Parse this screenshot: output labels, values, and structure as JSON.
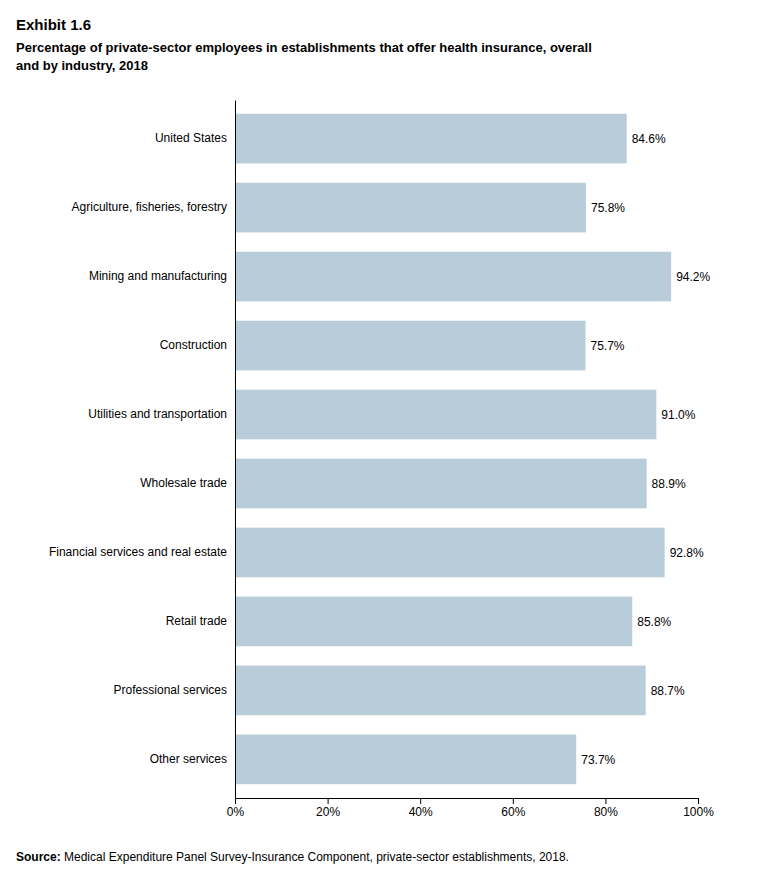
{
  "chart_data": {
    "type": "bar",
    "orientation": "horizontal",
    "title": "Exhibit 1.6",
    "subtitle": [
      "Percentage of private-sector employees in establishments that offer health insurance, overall",
      "and by industry, 2018"
    ],
    "annotations": [
      "Source:",
      " Medical Expenditure Panel Survey-Insurance Component, private-sector establishments, 2018."
    ],
    "categories": [
      "United States",
      "Agriculture, fisheries, forestry",
      "Mining and manufacturing",
      "Construction",
      "Utilities and transportation",
      "Wholesale trade",
      "Financial services and real estate",
      "Retail trade",
      "Professional services",
      "Other services"
    ],
    "values": [
      84.6,
      75.8,
      94.2,
      75.7,
      91.0,
      88.9,
      92.8,
      85.8,
      88.7,
      73.7
    ],
    "value_labels": [
      "84.6%",
      "75.8%",
      "94.2%",
      "75.7%",
      "91.0%",
      "88.9%",
      "92.8%",
      "85.8%",
      "88.7%",
      "73.7%"
    ],
    "data_labels": true,
    "color": "#b8cdd9",
    "xlim": [
      0,
      100
    ],
    "xticks": [
      {
        "value": 0,
        "label": "0%"
      },
      {
        "value": 20,
        "label": "20%"
      },
      {
        "value": 40,
        "label": "40%"
      },
      {
        "value": 60,
        "label": "60%"
      },
      {
        "value": 80,
        "label": "80%"
      },
      {
        "value": 100,
        "label": "100%"
      }
    ],
    "grid": false
  }
}
